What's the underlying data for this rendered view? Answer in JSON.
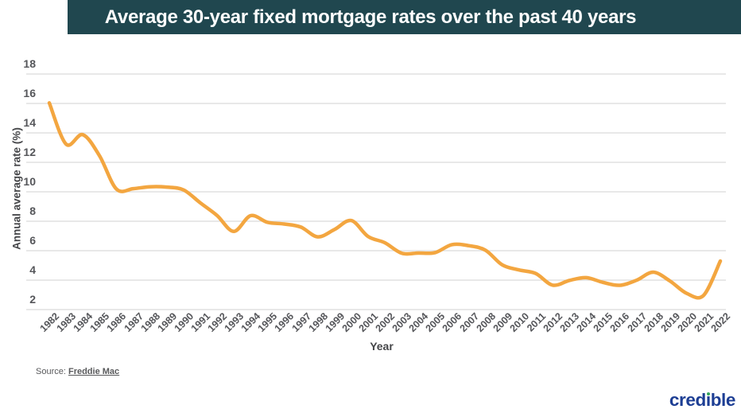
{
  "header": {
    "title": "Average 30-year fixed mortgage rates over the past 40 years"
  },
  "chart_data": {
    "type": "line",
    "title": "Average 30-year fixed mortgage rates over the past 40 years",
    "xlabel": "Year",
    "ylabel": "Annual average rate (%)",
    "categories": [
      "1982",
      "1983",
      "1984",
      "1985",
      "1986",
      "1987",
      "1988",
      "1989",
      "1990",
      "1991",
      "1992",
      "1993",
      "1994",
      "1995",
      "1996",
      "1997",
      "1998",
      "1999",
      "2000",
      "2001",
      "2002",
      "2003",
      "2004",
      "2005",
      "2006",
      "2007",
      "2008",
      "2009",
      "2010",
      "2011",
      "2012",
      "2013",
      "2014",
      "2015",
      "2016",
      "2017",
      "2018",
      "2019",
      "2020",
      "2021",
      "2022"
    ],
    "series": [
      {
        "name": "Average 30-year fixed mortgage rate (%)",
        "values": [
          16.04,
          13.24,
          13.88,
          12.43,
          10.19,
          10.21,
          10.34,
          10.32,
          10.13,
          9.25,
          8.39,
          7.31,
          8.38,
          7.93,
          7.81,
          7.6,
          6.94,
          7.44,
          8.05,
          6.97,
          6.54,
          5.83,
          5.84,
          5.87,
          6.41,
          6.34,
          6.03,
          5.04,
          4.69,
          4.45,
          3.66,
          3.98,
          4.17,
          3.85,
          3.65,
          3.99,
          4.54,
          3.94,
          3.1,
          2.96,
          5.3
        ]
      }
    ],
    "ylim": [
      2,
      18
    ],
    "ytick_step": 2,
    "grid": "horizontal",
    "legend": "none",
    "line_style": "smooth"
  },
  "colors": {
    "title_bar": "#20474F",
    "title_text": "#FFFFFF",
    "line": "#F3A640",
    "grid": "#DBDBDB",
    "axis_text": "#55565A",
    "logo_blue": "#1D3E94",
    "logo_green": "#35A85B"
  },
  "footer": {
    "source_prefix": "Source: ",
    "source_link": "Freddie Mac"
  },
  "logo": {
    "part1": "cred",
    "dotless_i": "ı",
    "part2": "ble"
  }
}
